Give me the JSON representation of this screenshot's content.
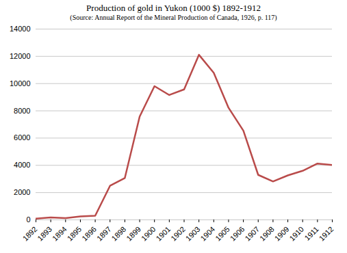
{
  "chart_data": {
    "type": "line",
    "title": "Production of gold in Yukon  (1000 $) 1892-1912",
    "subtitle": "(Source: Annual Report of the Mineral Production of Canada, 1926, p. 117)",
    "x": [
      1892,
      1893,
      1894,
      1895,
      1896,
      1897,
      1898,
      1899,
      1900,
      1901,
      1902,
      1903,
      1904,
      1905,
      1906,
      1907,
      1908,
      1909,
      1910,
      1911,
      1912
    ],
    "values": [
      90,
      180,
      130,
      250,
      300,
      2500,
      3070,
      7580,
      9810,
      9160,
      9570,
      12110,
      10790,
      8220,
      6540,
      3300,
      2820,
      3260,
      3600,
      4130,
      4030
    ],
    "color": "#b94b4a",
    "xlim": [
      1892,
      1912
    ],
    "xticks": [
      1892,
      1893,
      1894,
      1895,
      1896,
      1897,
      1898,
      1899,
      1900,
      1901,
      1902,
      1903,
      1904,
      1905,
      1906,
      1907,
      1908,
      1909,
      1910,
      1911,
      1912
    ],
    "ylim": [
      0,
      14000
    ],
    "yticks": [
      0,
      2000,
      4000,
      6000,
      8000,
      10000,
      12000,
      14000
    ],
    "grid": true
  }
}
